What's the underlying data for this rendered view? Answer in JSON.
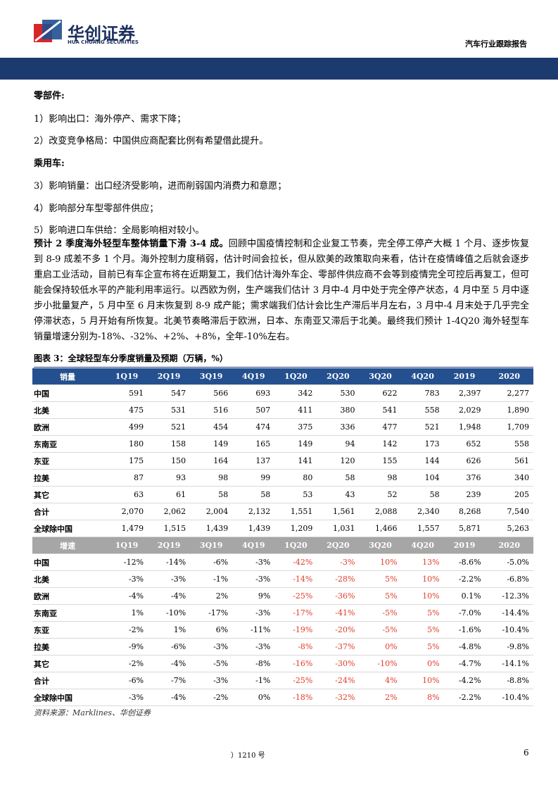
{
  "header": {
    "company_cn": "华创证券",
    "company_en": "HUA CHUANG SECURITIES",
    "report_type": "汽车行业跟踪报告"
  },
  "parts": {
    "heading": "零部件:",
    "items": [
      "1）影响出口：海外停产、需求下降；",
      "2）改变竞争格局：中国供应商配套比例有希望借此提升。"
    ]
  },
  "cars": {
    "heading": "乘用车:",
    "items": [
      "3）影响销量：出口经济受影响，进而削弱国内消费力和意愿；",
      "4）影响部分车型零部件供应；",
      "5）影响进口车供给：全局影响相对较小。"
    ]
  },
  "paragraph": {
    "lead": "预计 2 季度海外轻型车整体销量下滑 3-4 成。",
    "body": "回顾中国疫情控制和企业复工节奏，完全停工停产大概 1 个月、逐步恢复到 8-9 成差不多 1 个月。海外控制力度稍弱，估计时间会拉长，但从欧美的政策取向来看，估计在疫情峰值之后就会逐步重启工业活动，目前已有车企宣布将在近期复工，我们估计海外车企、零部件供应商不会等到疫情完全可控后再复工，但可能会保持较低水平的产能利用率运行。以西欧为例，生产端我们估计 3 月中-4 月中处于完全停产状态，4 月中至 5 月中逐步小批量复产，5 月中至 6 月末恢复到 8-9 成产能；需求端我们估计会比生产滞后半月左右，3 月中-4 月末处于几乎完全停滞状态，5 月开始有所恢复。北美节奏略滞后于欧洲，日本、东南亚又滞后于北美。最终我们预计 1-4Q20 海外轻型车销量增速分别为-18%、-32%、+2%、+8%，全年-10%左右。"
  },
  "figure": {
    "caption": "图表 3：全球轻型车分季度销量及预期（万辆，%）",
    "table": {
      "header": [
        "销量",
        "1Q19",
        "2Q19",
        "3Q19",
        "4Q19",
        "1Q20",
        "2Q20",
        "3Q20",
        "4Q20",
        "2019",
        "2020"
      ],
      "rows": [
        [
          "中国",
          "591",
          "547",
          "566",
          "693",
          "342",
          "530",
          "622",
          "783",
          "2,397",
          "2,277"
        ],
        [
          "北美",
          "475",
          "531",
          "516",
          "507",
          "411",
          "380",
          "541",
          "558",
          "2,029",
          "1,890"
        ],
        [
          "欧洲",
          "499",
          "521",
          "454",
          "474",
          "375",
          "336",
          "477",
          "521",
          "1,948",
          "1,709"
        ],
        [
          "东南亚",
          "180",
          "158",
          "149",
          "165",
          "149",
          "94",
          "142",
          "173",
          "652",
          "558"
        ],
        [
          "东亚",
          "175",
          "150",
          "164",
          "137",
          "141",
          "120",
          "155",
          "144",
          "626",
          "561"
        ],
        [
          "拉美",
          "87",
          "93",
          "98",
          "99",
          "80",
          "58",
          "98",
          "104",
          "376",
          "340"
        ],
        [
          "其它",
          "63",
          "61",
          "58",
          "58",
          "53",
          "43",
          "52",
          "58",
          "239",
          "205"
        ],
        [
          "合计",
          "2,070",
          "2,062",
          "2,004",
          "2,132",
          "1,551",
          "1,561",
          "2,088",
          "2,340",
          "8,268",
          "7,540"
        ],
        [
          "全球除中国",
          "1,479",
          "1,515",
          "1,439",
          "1,439",
          "1,209",
          "1,031",
          "1,466",
          "1,557",
          "5,871",
          "5,263"
        ]
      ],
      "growth_header": [
        "增速",
        "1Q19",
        "2Q19",
        "3Q19",
        "4Q19",
        "1Q20",
        "2Q20",
        "3Q20",
        "4Q20",
        "2019",
        "2020"
      ],
      "growth_rows": [
        [
          "中国",
          "-12%",
          "-14%",
          "-6%",
          "-3%",
          "-42%",
          "-3%",
          "10%",
          "13%",
          "-8.6%",
          "-5.0%"
        ],
        [
          "北美",
          "-3%",
          "-3%",
          "-1%",
          "-3%",
          "-14%",
          "-28%",
          "5%",
          "10%",
          "-2.2%",
          "-6.8%"
        ],
        [
          "欧洲",
          "-4%",
          "-4%",
          "2%",
          "9%",
          "-25%",
          "-36%",
          "5%",
          "10%",
          "0.1%",
          "-12.3%"
        ],
        [
          "东南亚",
          "1%",
          "-10%",
          "-17%",
          "-3%",
          "-17%",
          "-41%",
          "-5%",
          "5%",
          "-7.0%",
          "-14.4%"
        ],
        [
          "东亚",
          "-2%",
          "1%",
          "6%",
          "-11%",
          "-19%",
          "-20%",
          "-5%",
          "5%",
          "-1.6%",
          "-10.4%"
        ],
        [
          "拉美",
          "-9%",
          "-6%",
          "-3%",
          "-3%",
          "-8%",
          "-37%",
          "0%",
          "5%",
          "-4.8%",
          "-9.8%"
        ],
        [
          "其它",
          "-2%",
          "-4%",
          "-5%",
          "-8%",
          "-16%",
          "-30%",
          "-10%",
          "0%",
          "-4.7%",
          "-14.1%"
        ],
        [
          "合计",
          "-6%",
          "-7%",
          "-3%",
          "-1%",
          "-25%",
          "-24%",
          "4%",
          "10%",
          "-4.2%",
          "-8.8%"
        ],
        [
          "全球除中国",
          "-3%",
          "-4%",
          "-2%",
          "0%",
          "-18%",
          "-32%",
          "2%",
          "8%",
          "-2.2%",
          "-10.4%"
        ]
      ]
    },
    "source": "资料来源：Marklines、华创证券"
  },
  "footer": {
    "note": "）1210 号",
    "page": "6"
  }
}
